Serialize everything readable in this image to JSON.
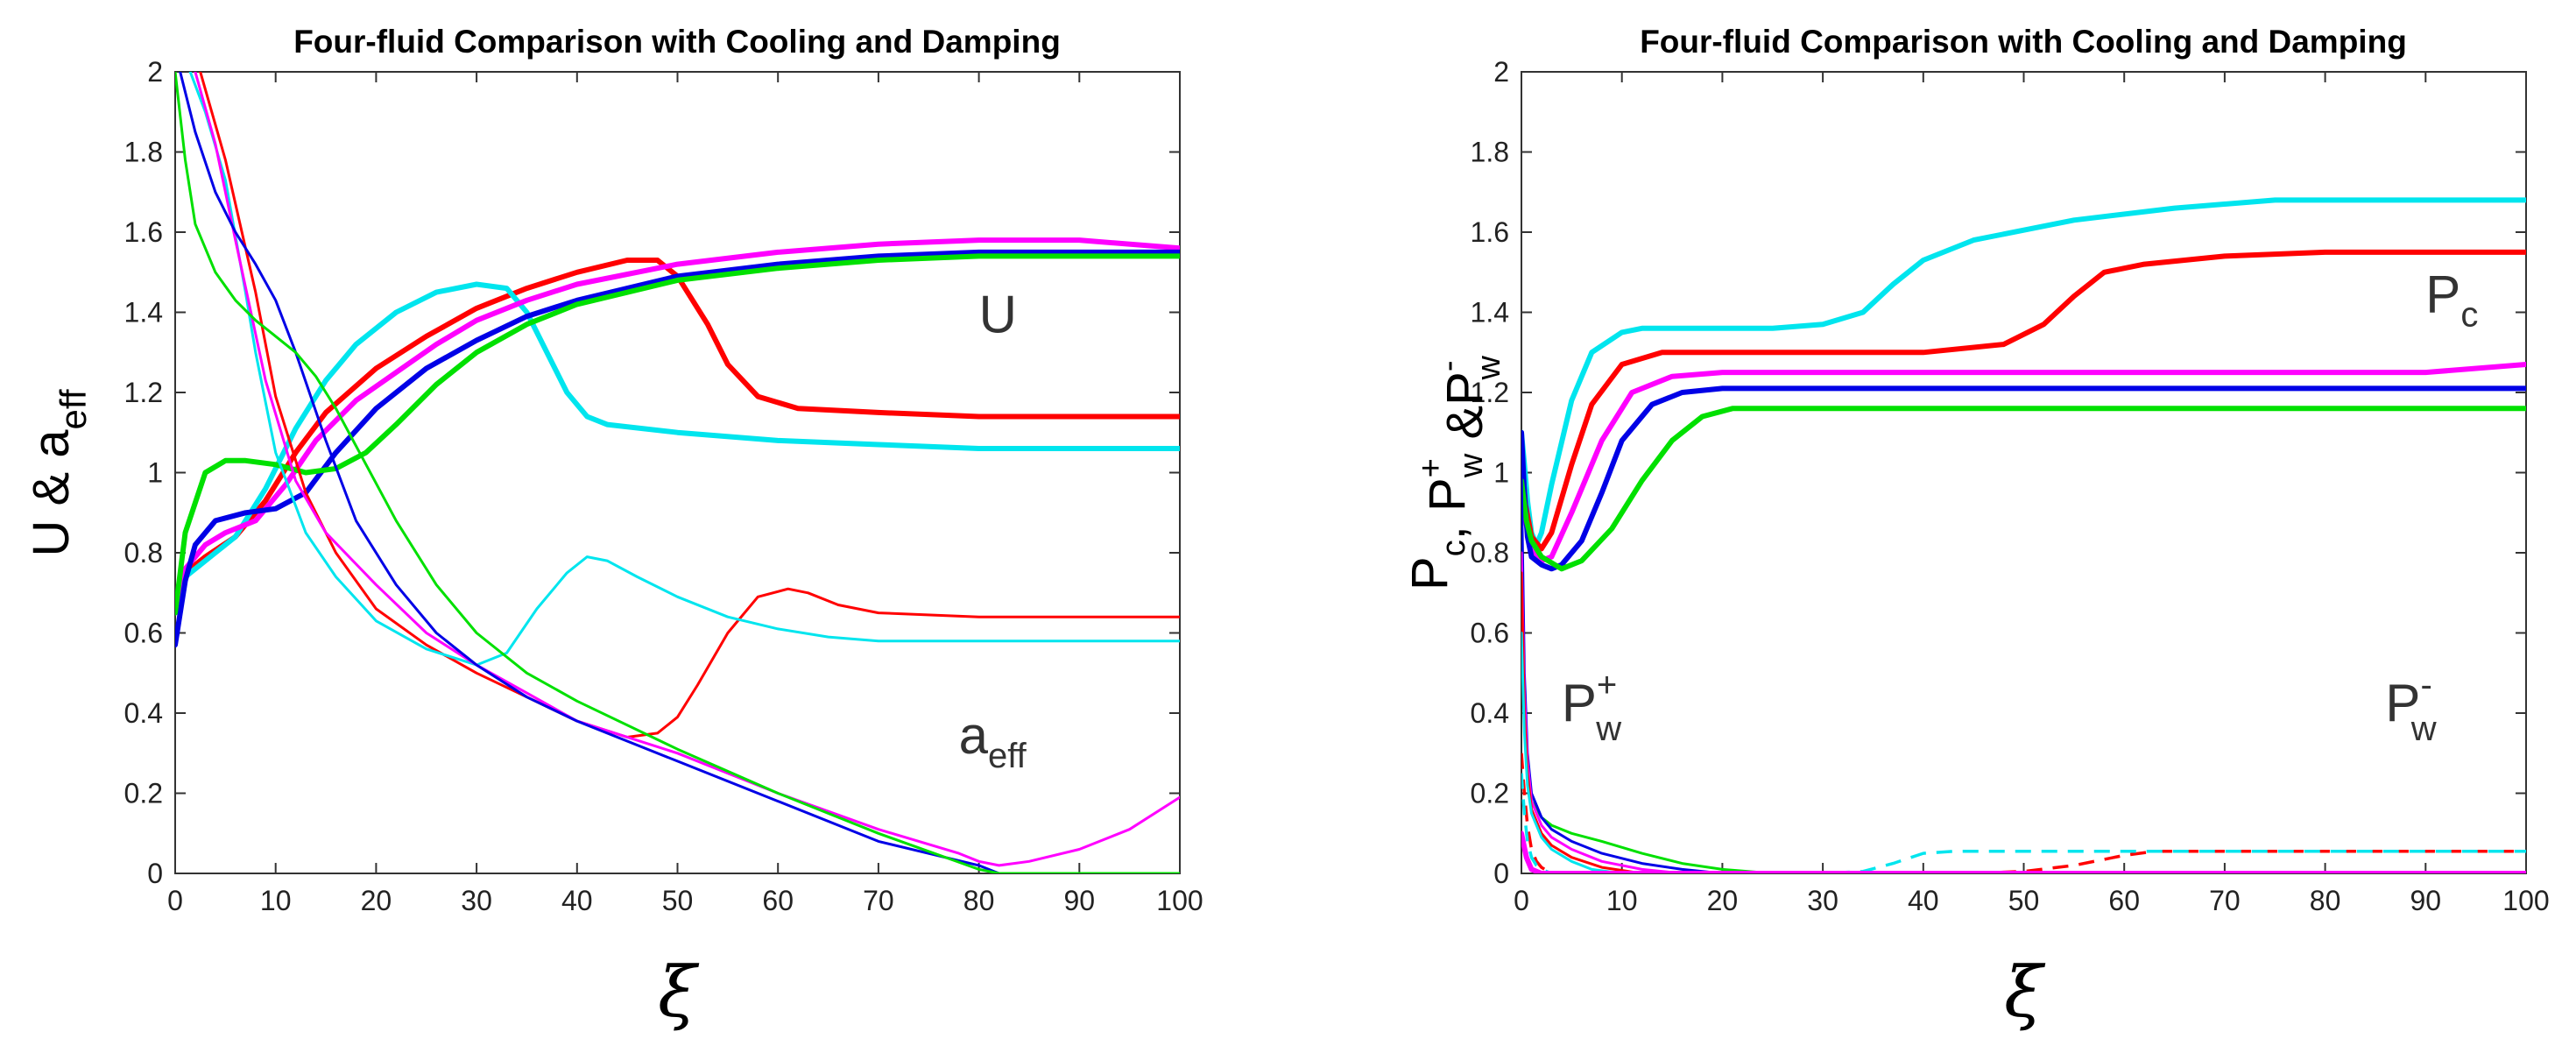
{
  "chart_data": [
    {
      "type": "line",
      "title": "Four-fluid Comparison with Cooling and Damping",
      "xlabel": "ξ",
      "ylabel": "U & a",
      "ylabel_sub": "eff",
      "xlim": [
        0,
        100
      ],
      "ylim": [
        0,
        2
      ],
      "xticks": [
        "0",
        "10",
        "20",
        "30",
        "40",
        "50",
        "60",
        "70",
        "80",
        "90",
        "100"
      ],
      "yticks": [
        "0",
        "0.2",
        "0.4",
        "0.6",
        "0.8",
        "1",
        "1.2",
        "1.4",
        "1.6",
        "1.8",
        "2"
      ],
      "annotations": [
        {
          "text": "U",
          "sub": "",
          "sup": "",
          "x": 80,
          "y": 1.35
        },
        {
          "text": "a",
          "sub": "eff",
          "sup": "",
          "x": 78,
          "y": 0.3
        }
      ],
      "series": [
        {
          "name": "U red",
          "color": "#ff0000",
          "width": "thick",
          "x": [
            0,
            1,
            3,
            6,
            9,
            12,
            15,
            20,
            25,
            30,
            35,
            40,
            45,
            48,
            50,
            53,
            55,
            58,
            62,
            70,
            80,
            100
          ],
          "y": [
            0.66,
            0.75,
            0.79,
            0.84,
            0.93,
            1.05,
            1.15,
            1.26,
            1.34,
            1.41,
            1.46,
            1.5,
            1.53,
            1.53,
            1.49,
            1.37,
            1.27,
            1.19,
            1.16,
            1.15,
            1.14,
            1.14
          ]
        },
        {
          "name": "U cyan",
          "color": "#00e5ee",
          "width": "thick",
          "x": [
            0,
            1,
            3,
            6,
            9,
            12,
            15,
            18,
            22,
            26,
            30,
            33,
            35,
            37,
            39,
            41,
            43,
            50,
            60,
            70,
            80,
            100
          ],
          "y": [
            0.67,
            0.74,
            0.78,
            0.84,
            0.96,
            1.11,
            1.23,
            1.32,
            1.4,
            1.45,
            1.47,
            1.46,
            1.4,
            1.3,
            1.2,
            1.14,
            1.12,
            1.1,
            1.08,
            1.07,
            1.06,
            1.06
          ]
        },
        {
          "name": "U magenta",
          "color": "#ff00ff",
          "width": "thick",
          "x": [
            0,
            1,
            3,
            5,
            8,
            11,
            14,
            18,
            22,
            26,
            30,
            35,
            40,
            50,
            60,
            70,
            80,
            90,
            100
          ],
          "y": [
            0.65,
            0.76,
            0.82,
            0.85,
            0.88,
            0.97,
            1.08,
            1.18,
            1.25,
            1.32,
            1.38,
            1.43,
            1.47,
            1.52,
            1.55,
            1.57,
            1.58,
            1.58,
            1.56
          ]
        },
        {
          "name": "U blue",
          "color": "#0000e6",
          "width": "thick",
          "x": [
            0,
            1,
            2,
            4,
            7,
            10,
            13,
            16,
            20,
            25,
            30,
            35,
            40,
            50,
            60,
            70,
            80,
            90,
            100
          ],
          "y": [
            0.57,
            0.73,
            0.82,
            0.88,
            0.9,
            0.91,
            0.95,
            1.05,
            1.16,
            1.26,
            1.33,
            1.39,
            1.43,
            1.49,
            1.52,
            1.54,
            1.55,
            1.55,
            1.55
          ]
        },
        {
          "name": "U green",
          "color": "#00e000",
          "width": "thick",
          "x": [
            0,
            1,
            3,
            5,
            7,
            10,
            13,
            16,
            19,
            22,
            26,
            30,
            35,
            40,
            50,
            60,
            70,
            80,
            90,
            100
          ],
          "y": [
            0.65,
            0.85,
            1.0,
            1.03,
            1.03,
            1.02,
            1.0,
            1.01,
            1.05,
            1.12,
            1.22,
            1.3,
            1.37,
            1.42,
            1.48,
            1.51,
            1.53,
            1.54,
            1.54,
            1.54
          ]
        },
        {
          "name": "a_eff red",
          "color": "#ff0000",
          "width": "thin",
          "x": [
            2.5,
            5,
            8,
            10,
            13,
            16,
            20,
            25,
            30,
            35,
            40,
            45,
            48,
            50,
            52,
            55,
            58,
            61,
            63,
            66,
            70,
            80,
            100
          ],
          "y": [
            2.0,
            1.78,
            1.45,
            1.19,
            0.95,
            0.8,
            0.66,
            0.57,
            0.5,
            0.44,
            0.38,
            0.34,
            0.35,
            0.39,
            0.47,
            0.6,
            0.69,
            0.71,
            0.7,
            0.67,
            0.65,
            0.64,
            0.64
          ]
        },
        {
          "name": "a_eff cyan",
          "color": "#00e5ee",
          "width": "thin",
          "x": [
            1.5,
            3,
            5,
            7,
            8,
            10,
            13,
            16,
            20,
            25,
            30,
            33,
            36,
            39,
            41,
            43,
            46,
            50,
            55,
            60,
            65,
            70,
            80,
            100
          ],
          "y": [
            2.0,
            1.9,
            1.73,
            1.45,
            1.3,
            1.05,
            0.85,
            0.74,
            0.63,
            0.56,
            0.52,
            0.55,
            0.66,
            0.75,
            0.79,
            0.78,
            0.74,
            0.69,
            0.64,
            0.61,
            0.59,
            0.58,
            0.58,
            0.58
          ]
        },
        {
          "name": "a_eff magenta",
          "color": "#ff00ff",
          "width": "thin",
          "x": [
            2,
            4,
            6,
            9,
            12,
            15,
            20,
            25,
            30,
            35,
            40,
            50,
            60,
            70,
            78,
            80,
            82,
            85,
            90,
            95,
            100
          ],
          "y": [
            2.0,
            1.82,
            1.58,
            1.23,
            0.98,
            0.85,
            0.72,
            0.6,
            0.52,
            0.45,
            0.38,
            0.3,
            0.2,
            0.11,
            0.05,
            0.03,
            0.02,
            0.03,
            0.06,
            0.11,
            0.19
          ]
        },
        {
          "name": "a_eff blue",
          "color": "#0000e6",
          "width": "thin",
          "x": [
            0.5,
            2,
            4,
            6,
            8,
            10,
            12,
            15,
            18,
            22,
            26,
            30,
            35,
            40,
            50,
            60,
            70,
            80,
            82,
            85,
            100
          ],
          "y": [
            2.0,
            1.85,
            1.7,
            1.6,
            1.52,
            1.43,
            1.3,
            1.08,
            0.88,
            0.72,
            0.6,
            0.52,
            0.44,
            0.38,
            0.28,
            0.18,
            0.08,
            0.02,
            0.0,
            0.0,
            0.0
          ]
        },
        {
          "name": "a_eff green",
          "color": "#00e000",
          "width": "thin",
          "x": [
            0,
            1,
            2,
            4,
            6,
            8,
            10,
            12,
            14,
            16,
            19,
            22,
            26,
            30,
            35,
            40,
            50,
            60,
            70,
            80,
            82,
            85,
            100
          ],
          "y": [
            2.0,
            1.78,
            1.62,
            1.5,
            1.43,
            1.38,
            1.34,
            1.3,
            1.24,
            1.16,
            1.02,
            0.88,
            0.72,
            0.6,
            0.5,
            0.43,
            0.31,
            0.2,
            0.1,
            0.01,
            0.0,
            0.0,
            0.0
          ]
        }
      ]
    },
    {
      "type": "line",
      "title": "Four-fluid Comparison with Cooling and Damping",
      "xlabel": "ξ",
      "ylabel": "P",
      "ylabel_parts": [
        {
          "t": "P",
          "sub": "c",
          "sup": ""
        },
        {
          "t": ", P",
          "sub": "w",
          "sup": "+"
        },
        {
          "t": " &P",
          "sub": "w",
          "sup": "-"
        }
      ],
      "xlim": [
        0,
        100
      ],
      "ylim": [
        0,
        2
      ],
      "xticks": [
        "0",
        "10",
        "20",
        "30",
        "40",
        "50",
        "60",
        "70",
        "80",
        "90",
        "100"
      ],
      "yticks": [
        "0",
        "0.2",
        "0.4",
        "0.6",
        "0.8",
        "1",
        "1.2",
        "1.4",
        "1.6",
        "1.8",
        "2"
      ],
      "annotations": [
        {
          "text": "P",
          "sub": "c",
          "sup": "",
          "x": 90,
          "y": 1.4
        },
        {
          "text": "P",
          "sub": "w",
          "sup": "+",
          "x": 4,
          "y": 0.38
        },
        {
          "text": "P",
          "sub": "w",
          "sup": "-",
          "x": 86,
          "y": 0.38
        }
      ],
      "series": [
        {
          "name": "Pc cyan",
          "color": "#00e5ee",
          "width": "thick",
          "x": [
            0,
            0.3,
            0.6,
            1,
            1.5,
            2,
            3,
            5,
            7,
            10,
            12,
            15,
            25,
            30,
            34,
            37,
            40,
            45,
            55,
            65,
            75,
            100
          ],
          "y": [
            1.1,
            1.02,
            0.93,
            0.85,
            0.82,
            0.85,
            0.97,
            1.18,
            1.3,
            1.35,
            1.36,
            1.36,
            1.36,
            1.37,
            1.4,
            1.47,
            1.53,
            1.58,
            1.63,
            1.66,
            1.68,
            1.68
          ]
        },
        {
          "name": "Pc red",
          "color": "#ff0000",
          "width": "thick",
          "x": [
            0,
            0.4,
            1,
            2,
            3,
            5,
            7,
            10,
            14,
            20,
            30,
            40,
            48,
            52,
            55,
            58,
            62,
            70,
            80,
            100
          ],
          "y": [
            1.05,
            0.92,
            0.84,
            0.81,
            0.85,
            1.02,
            1.17,
            1.27,
            1.3,
            1.3,
            1.3,
            1.3,
            1.32,
            1.37,
            1.44,
            1.5,
            1.52,
            1.54,
            1.55,
            1.55
          ]
        },
        {
          "name": "Pc magenta",
          "color": "#ff00ff",
          "width": "thick",
          "x": [
            0,
            0.4,
            1,
            2,
            3,
            5,
            8,
            11,
            15,
            20,
            30,
            50,
            70,
            90,
            100
          ],
          "y": [
            1.0,
            0.88,
            0.81,
            0.78,
            0.79,
            0.9,
            1.08,
            1.2,
            1.24,
            1.25,
            1.25,
            1.25,
            1.25,
            1.25,
            1.27
          ]
        },
        {
          "name": "Pc blue",
          "color": "#0000e6",
          "width": "thick",
          "x": [
            0,
            0.3,
            0.6,
            1,
            2,
            3,
            4,
            6,
            8,
            10,
            13,
            16,
            20,
            30,
            50,
            70,
            100
          ],
          "y": [
            1.1,
            0.95,
            0.84,
            0.79,
            0.77,
            0.76,
            0.77,
            0.83,
            0.95,
            1.08,
            1.17,
            1.2,
            1.21,
            1.21,
            1.21,
            1.21,
            1.21
          ]
        },
        {
          "name": "Pc green",
          "color": "#00e000",
          "width": "thick",
          "x": [
            0,
            0.5,
            1,
            2,
            4,
            6,
            9,
            12,
            15,
            18,
            21,
            25,
            30,
            50,
            70,
            100
          ],
          "y": [
            0.98,
            0.88,
            0.83,
            0.79,
            0.76,
            0.78,
            0.86,
            0.98,
            1.08,
            1.14,
            1.16,
            1.16,
            1.16,
            1.16,
            1.16,
            1.16
          ]
        },
        {
          "name": "Pw+ green",
          "color": "#00e000",
          "width": "thin",
          "x": [
            0,
            0.3,
            0.6,
            1,
            2,
            3,
            5,
            8,
            12,
            16,
            20,
            25,
            30,
            100
          ],
          "y": [
            0.7,
            0.4,
            0.25,
            0.18,
            0.14,
            0.12,
            0.1,
            0.08,
            0.05,
            0.025,
            0.01,
            0.0,
            0.0,
            0.0
          ]
        },
        {
          "name": "Pw+ blue",
          "color": "#0000e6",
          "width": "thin",
          "x": [
            0,
            0.3,
            0.6,
            1,
            2,
            3,
            5,
            8,
            12,
            16,
            20,
            30,
            100
          ],
          "y": [
            1.0,
            0.5,
            0.3,
            0.2,
            0.14,
            0.11,
            0.08,
            0.05,
            0.025,
            0.01,
            0.0,
            0.0,
            0.0
          ]
        },
        {
          "name": "Pw+ magenta",
          "color": "#ff00ff",
          "width": "thin",
          "x": [
            0,
            0.3,
            0.6,
            1,
            2,
            3,
            5,
            8,
            12,
            16,
            100
          ],
          "y": [
            0.8,
            0.45,
            0.28,
            0.18,
            0.12,
            0.09,
            0.06,
            0.03,
            0.01,
            0.0,
            0.0
          ]
        },
        {
          "name": "Pw+ red",
          "color": "#ff0000",
          "width": "thin",
          "x": [
            0,
            0.3,
            0.6,
            1,
            2,
            3,
            5,
            8,
            12,
            100
          ],
          "y": [
            0.75,
            0.4,
            0.25,
            0.16,
            0.1,
            0.07,
            0.04,
            0.015,
            0.0,
            0.0
          ]
        },
        {
          "name": "Pw+ cyan",
          "color": "#00e5ee",
          "width": "thin",
          "x": [
            0,
            0.3,
            0.6,
            1,
            2,
            3,
            5,
            7,
            10,
            100
          ],
          "y": [
            0.6,
            0.35,
            0.22,
            0.15,
            0.09,
            0.06,
            0.03,
            0.01,
            0.0,
            0.0
          ]
        },
        {
          "name": "Pw- red",
          "color": "#ff0000",
          "width": "dashed",
          "x": [
            0,
            0.3,
            0.6,
            1,
            1.5,
            2,
            3,
            5,
            8,
            12,
            45,
            50,
            55,
            60,
            63,
            70,
            100
          ],
          "y": [
            0.3,
            0.2,
            0.12,
            0.06,
            0.03,
            0.015,
            0.0,
            0.0,
            0.0,
            0.0,
            0.0,
            0.005,
            0.02,
            0.045,
            0.055,
            0.055,
            0.055
          ]
        },
        {
          "name": "Pw- cyan",
          "color": "#00e5ee",
          "width": "dashed",
          "x": [
            0,
            0.3,
            0.6,
            1,
            1.5,
            2,
            3,
            5,
            30,
            34,
            37,
            40,
            43,
            50,
            100
          ],
          "y": [
            0.25,
            0.15,
            0.08,
            0.04,
            0.02,
            0.01,
            0.0,
            0.0,
            0.0,
            0.005,
            0.025,
            0.05,
            0.055,
            0.055,
            0.055
          ]
        },
        {
          "name": "Pw- magenta",
          "color": "#ff00ff",
          "width": "thick",
          "x": [
            0,
            0.5,
            1,
            2,
            3,
            100
          ],
          "y": [
            0.1,
            0.04,
            0.01,
            0.0,
            0.0,
            0.0
          ]
        }
      ]
    }
  ]
}
